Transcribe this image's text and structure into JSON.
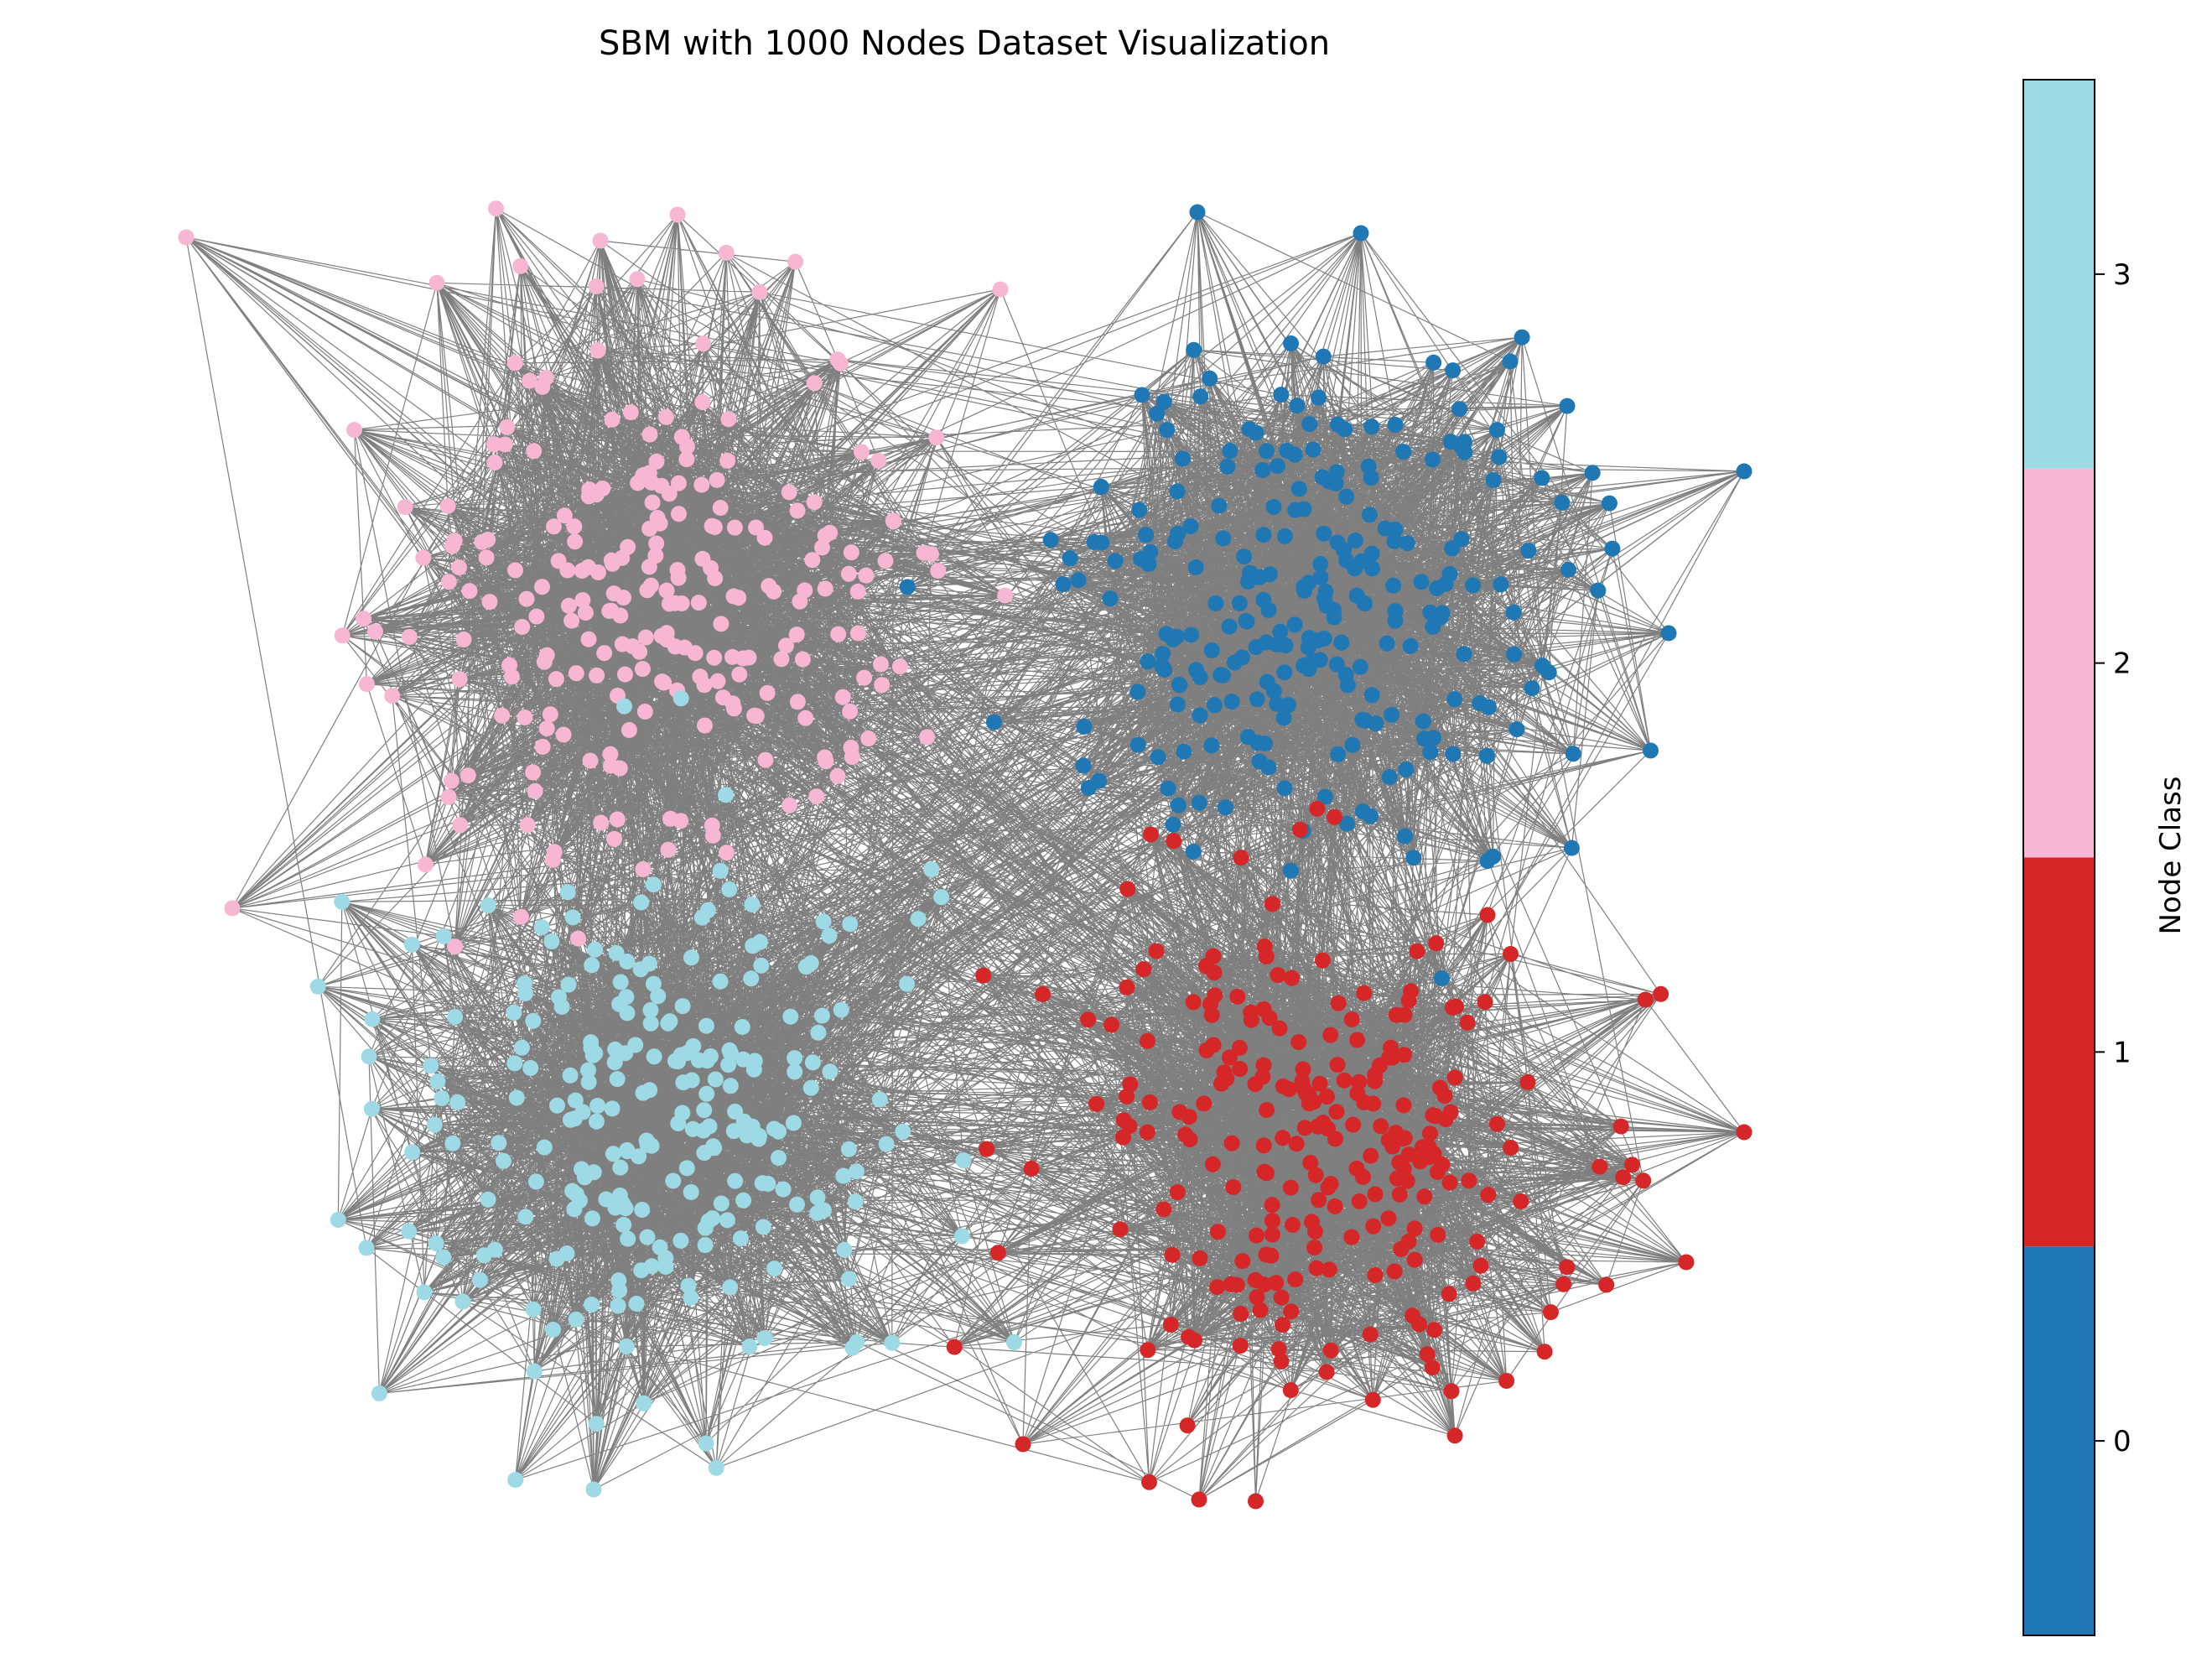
{
  "title": "SBM with 1000 Nodes Dataset Visualization",
  "colorbar": {
    "label": "Node Class",
    "ticks": [
      "0",
      "1",
      "2",
      "3"
    ]
  },
  "classes": [
    {
      "value": 0,
      "color": "#1f77b4"
    },
    {
      "value": 1,
      "color": "#d62728"
    },
    {
      "value": 2,
      "color": "#f7b6d2"
    },
    {
      "value": 3,
      "color": "#9edae5"
    }
  ],
  "graph": {
    "nodes_total": 1000,
    "communities": 4,
    "edge_color": "#000000"
  }
}
